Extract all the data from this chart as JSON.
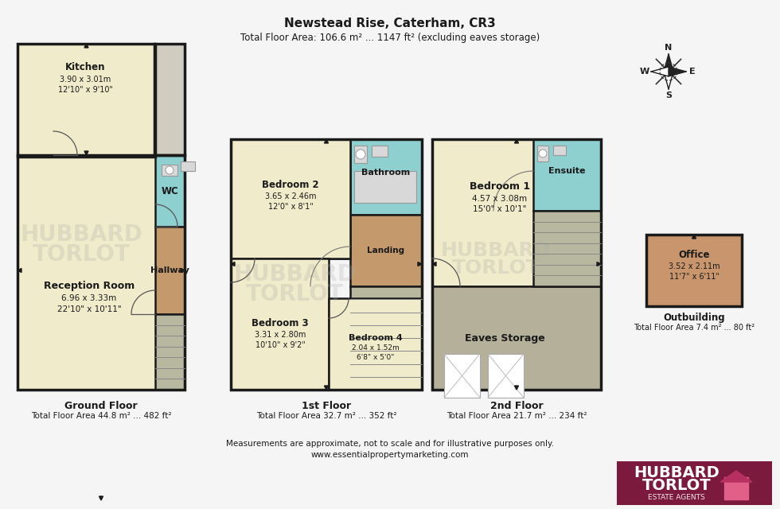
{
  "title": "Newstead Rise, Caterham, CR3",
  "subtitle": "Total Floor Area: 106.6 m² ... 1147 ft² (excluding eaves storage)",
  "footer_line1": "Measurements are approximate, not to scale and for illustrative purposes only.",
  "footer_line2": "www.essentialpropertymarketing.com",
  "bg_color": "#f5f5f5",
  "colors": {
    "cream": "#f0ebca",
    "teal_blue": "#8ecfcf",
    "brown": "#c49a6c",
    "light_grey": "#d0cdc0",
    "stair_grey": "#b8b8a0",
    "eaves_grey": "#b5b09a",
    "office_brown": "#c8956c",
    "dark": "#1a1a1a",
    "wall": "#1a1a1a",
    "white": "#ffffff",
    "fixture": "#d8d8d8"
  },
  "brand": {
    "bg": "#7b1a3c",
    "text": "#ffffff",
    "line1": "HUBBARD",
    "line2": "TORLOT",
    "sub": "ESTATE AGENTS"
  },
  "gf_label": "Ground Floor",
  "gf_area": "Total Floor Area 44.8 m² ... 482 ft²",
  "ff_label": "1st Floor",
  "ff_area": "Total Floor Area 32.7 m² ... 352 ft²",
  "sf_label": "2nd Floor",
  "sf_area": "Total Floor Area 21.7 m² ... 234 ft²",
  "ob_label": "Outbuilding",
  "ob_area": "Total Floor Area 7.4 m² ... 80 ft²"
}
